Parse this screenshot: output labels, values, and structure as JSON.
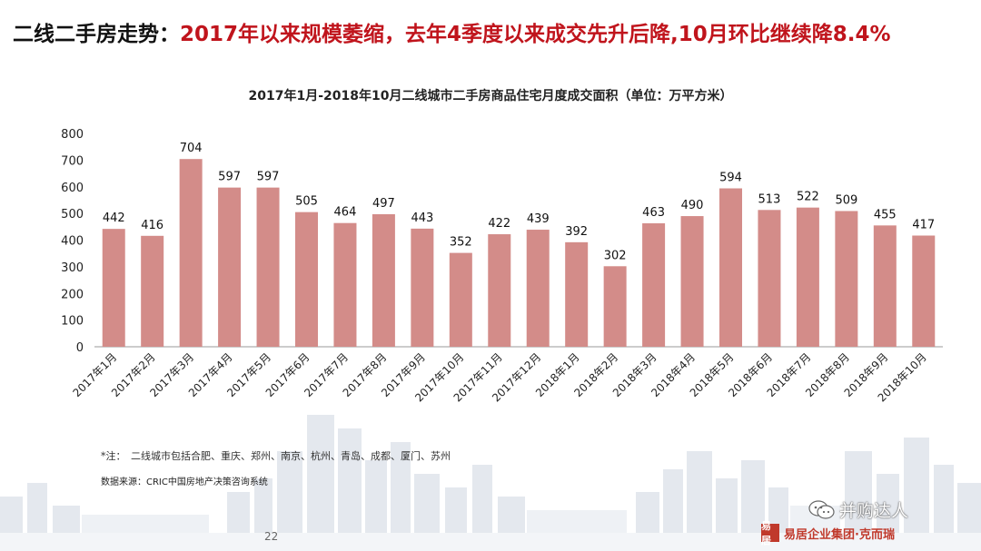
{
  "headline": {
    "prefix": "二线二手房走势：",
    "highlight": "2017年以来规模萎缩，去年4季度以来成交先升后降,10月环比继续降8.4%"
  },
  "colors": {
    "bar": "#d38c89",
    "axis": "#999999",
    "headline_red": "#c0141c",
    "brand_red": "#c0392b"
  },
  "chart_data": {
    "type": "bar",
    "title": "2017年1月-2018年10月二线城市二手房商品住宅月度成交面积（单位：万平方米）",
    "categories": [
      "2017年1月",
      "2017年2月",
      "2017年3月",
      "2017年4月",
      "2017年5月",
      "2017年6月",
      "2017年7月",
      "2017年8月",
      "2017年9月",
      "2017年10月",
      "2017年11月",
      "2017年12月",
      "2018年1月",
      "2018年2月",
      "2018年3月",
      "2018年4月",
      "2018年5月",
      "2018年6月",
      "2018年7月",
      "2018年8月",
      "2018年9月",
      "2018年10月"
    ],
    "values": [
      442,
      416,
      704,
      597,
      597,
      505,
      464,
      497,
      443,
      352,
      422,
      439,
      392,
      302,
      463,
      490,
      594,
      513,
      522,
      509,
      455,
      417
    ],
    "ylim": [
      0,
      800
    ],
    "yticks": [
      0,
      100,
      200,
      300,
      400,
      500,
      600,
      700,
      800
    ],
    "xlabel": "",
    "ylabel": "",
    "grid": false,
    "legend": "none"
  },
  "footnote": "*注：　二线城市包括合肥、重庆、郑州、南京、杭州、青岛、成都、厦门、苏州",
  "source": "数据来源：CRIC中国房地产决策咨询系统",
  "page_number": "22",
  "watermark": {
    "icon": "wechat-icon",
    "text": "并购达人"
  },
  "brand": {
    "logo_text": "易居",
    "text": "易居企业集团·克而瑞"
  }
}
